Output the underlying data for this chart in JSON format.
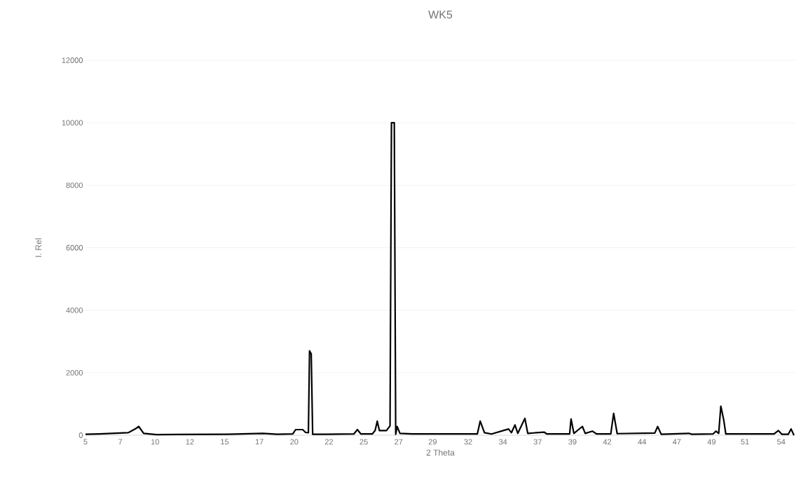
{
  "chart_data": {
    "type": "line",
    "title": "WK5",
    "xlabel": "2 Theta",
    "ylabel": "I. Rel",
    "xlim": [
      5,
      55
    ],
    "ylim": [
      0,
      12000
    ],
    "xticks": [
      {
        "value": 5,
        "label": "5"
      },
      {
        "value": 7.45,
        "label": "7"
      },
      {
        "value": 9.9,
        "label": "10"
      },
      {
        "value": 12.35,
        "label": "12"
      },
      {
        "value": 14.8,
        "label": "15"
      },
      {
        "value": 17.25,
        "label": "17"
      },
      {
        "value": 19.7,
        "label": "20"
      },
      {
        "value": 22.15,
        "label": "22"
      },
      {
        "value": 24.6,
        "label": "25"
      },
      {
        "value": 27.05,
        "label": "27"
      },
      {
        "value": 29.45,
        "label": "29"
      },
      {
        "value": 31.95,
        "label": "32"
      },
      {
        "value": 34.4,
        "label": "34"
      },
      {
        "value": 36.85,
        "label": "37"
      },
      {
        "value": 39.3,
        "label": "39"
      },
      {
        "value": 41.75,
        "label": "42"
      },
      {
        "value": 44.2,
        "label": "44"
      },
      {
        "value": 46.65,
        "label": "47"
      },
      {
        "value": 49.1,
        "label": "49"
      },
      {
        "value": 51.45,
        "label": "51"
      },
      {
        "value": 54,
        "label": "54"
      }
    ],
    "yticks": [
      0,
      2000,
      4000,
      6000,
      8000,
      10000,
      12000
    ],
    "grid": "y",
    "series": [
      {
        "color": "#000000",
        "x": [
          5,
          6,
          8,
          8.5,
          8.75,
          9.1,
          10,
          15,
          17.5,
          18.5,
          19.6,
          19.8,
          20.3,
          20.5,
          20.7,
          20.78,
          20.9,
          21.0,
          22,
          23.9,
          24.15,
          24.4,
          25.2,
          25.4,
          25.55,
          25.7,
          26.2,
          26.45,
          26.55,
          26.75,
          26.85,
          26.95,
          27.15,
          28,
          31,
          32.6,
          32.8,
          33.1,
          33.6,
          34.5,
          34.8,
          35.0,
          35.25,
          35.45,
          35.95,
          36.15,
          37.3,
          37.5,
          39.1,
          39.2,
          39.4,
          40.0,
          40.2,
          40.7,
          41.0,
          42.0,
          42.2,
          42.45,
          45.1,
          45.3,
          45.55,
          47.5,
          47.7,
          49.2,
          49.4,
          49.6,
          49.75,
          49.95,
          50.1,
          53.5,
          53.8,
          54.05,
          54.5,
          54.7,
          54.9
        ],
        "values": [
          30,
          40,
          80,
          200,
          280,
          60,
          20,
          30,
          60,
          30,
          40,
          180,
          180,
          90,
          80,
          2700,
          2600,
          30,
          30,
          40,
          180,
          40,
          40,
          150,
          450,
          150,
          150,
          300,
          10000,
          10000,
          30,
          280,
          60,
          40,
          40,
          40,
          450,
          80,
          40,
          160,
          200,
          80,
          330,
          60,
          540,
          60,
          100,
          40,
          40,
          520,
          60,
          280,
          60,
          130,
          40,
          40,
          700,
          50,
          70,
          280,
          30,
          60,
          30,
          40,
          130,
          60,
          930,
          500,
          40,
          40,
          150,
          30,
          30,
          200,
          0
        ]
      }
    ]
  }
}
